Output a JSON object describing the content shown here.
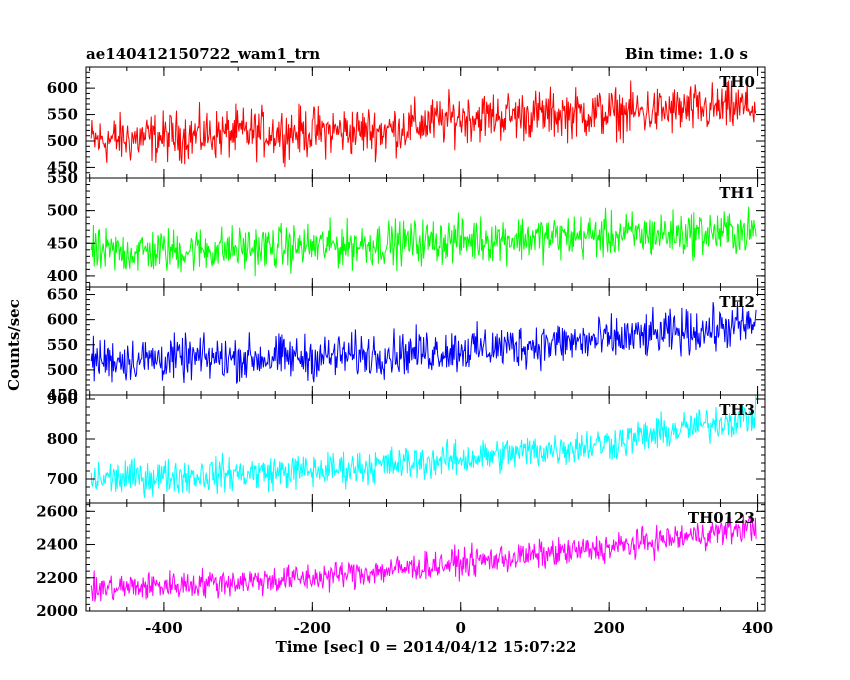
{
  "header": {
    "title": "ae140412150722_wam1_trn",
    "bin_time": "Bin time: 1.0 s"
  },
  "axes": {
    "xlabel": "Time [sec] 0 = 2014/04/12 15:07:22",
    "ylabel": "Counts/sec"
  },
  "chart_data": {
    "type": "line",
    "title": "ae140412150722_wam1_trn",
    "xlabel": "Time [sec] 0 = 2014/04/12 15:07:22",
    "ylabel": "Counts/sec",
    "xlim": [
      -505,
      410
    ],
    "x_ticks": [
      -400,
      -200,
      0,
      200,
      400
    ],
    "x_range_data": [
      -498,
      398
    ],
    "bin_time_s": 1.0,
    "grid": false,
    "legend": "none",
    "panels": [
      {
        "name": "TH0",
        "color": "#ff0000",
        "ylim": [
          430,
          640
        ],
        "y_ticks": [
          450,
          500,
          550,
          600
        ],
        "trend": [
          [
            -500,
            500
          ],
          [
            -300,
            515
          ],
          [
            -100,
            520
          ],
          [
            0,
            545
          ],
          [
            100,
            550
          ],
          [
            250,
            555
          ],
          [
            400,
            565
          ]
        ],
        "noise_amplitude": 30
      },
      {
        "name": "TH1",
        "color": "#00ff00",
        "ylim": [
          383,
          550
        ],
        "y_ticks": [
          400,
          450,
          500,
          550
        ],
        "trend": [
          [
            -500,
            435
          ],
          [
            -200,
            445
          ],
          [
            0,
            455
          ],
          [
            200,
            462
          ],
          [
            400,
            468
          ]
        ],
        "noise_amplitude": 22
      },
      {
        "name": "TH2",
        "color": "#0000ff",
        "ylim": [
          450,
          665
        ],
        "y_ticks": [
          450,
          500,
          550,
          600,
          650
        ],
        "trend": [
          [
            -500,
            520
          ],
          [
            -200,
            525
          ],
          [
            0,
            540
          ],
          [
            200,
            560
          ],
          [
            400,
            590
          ]
        ],
        "noise_amplitude": 28
      },
      {
        "name": "TH3",
        "color": "#00ffff",
        "ylim": [
          640,
          910
        ],
        "y_ticks": [
          700,
          800,
          900
        ],
        "trend": [
          [
            -500,
            700
          ],
          [
            -200,
            720
          ],
          [
            0,
            750
          ],
          [
            200,
            790
          ],
          [
            400,
            860
          ]
        ],
        "noise_amplitude": 28
      },
      {
        "name": "TH0123",
        "color": "#ff00ff",
        "ylim": [
          2000,
          2650
        ],
        "y_ticks": [
          2000,
          2200,
          2400,
          2600
        ],
        "trend": [
          [
            -500,
            2130
          ],
          [
            -200,
            2200
          ],
          [
            0,
            2290
          ],
          [
            200,
            2380
          ],
          [
            400,
            2510
          ]
        ],
        "noise_amplitude": 55
      }
    ]
  }
}
